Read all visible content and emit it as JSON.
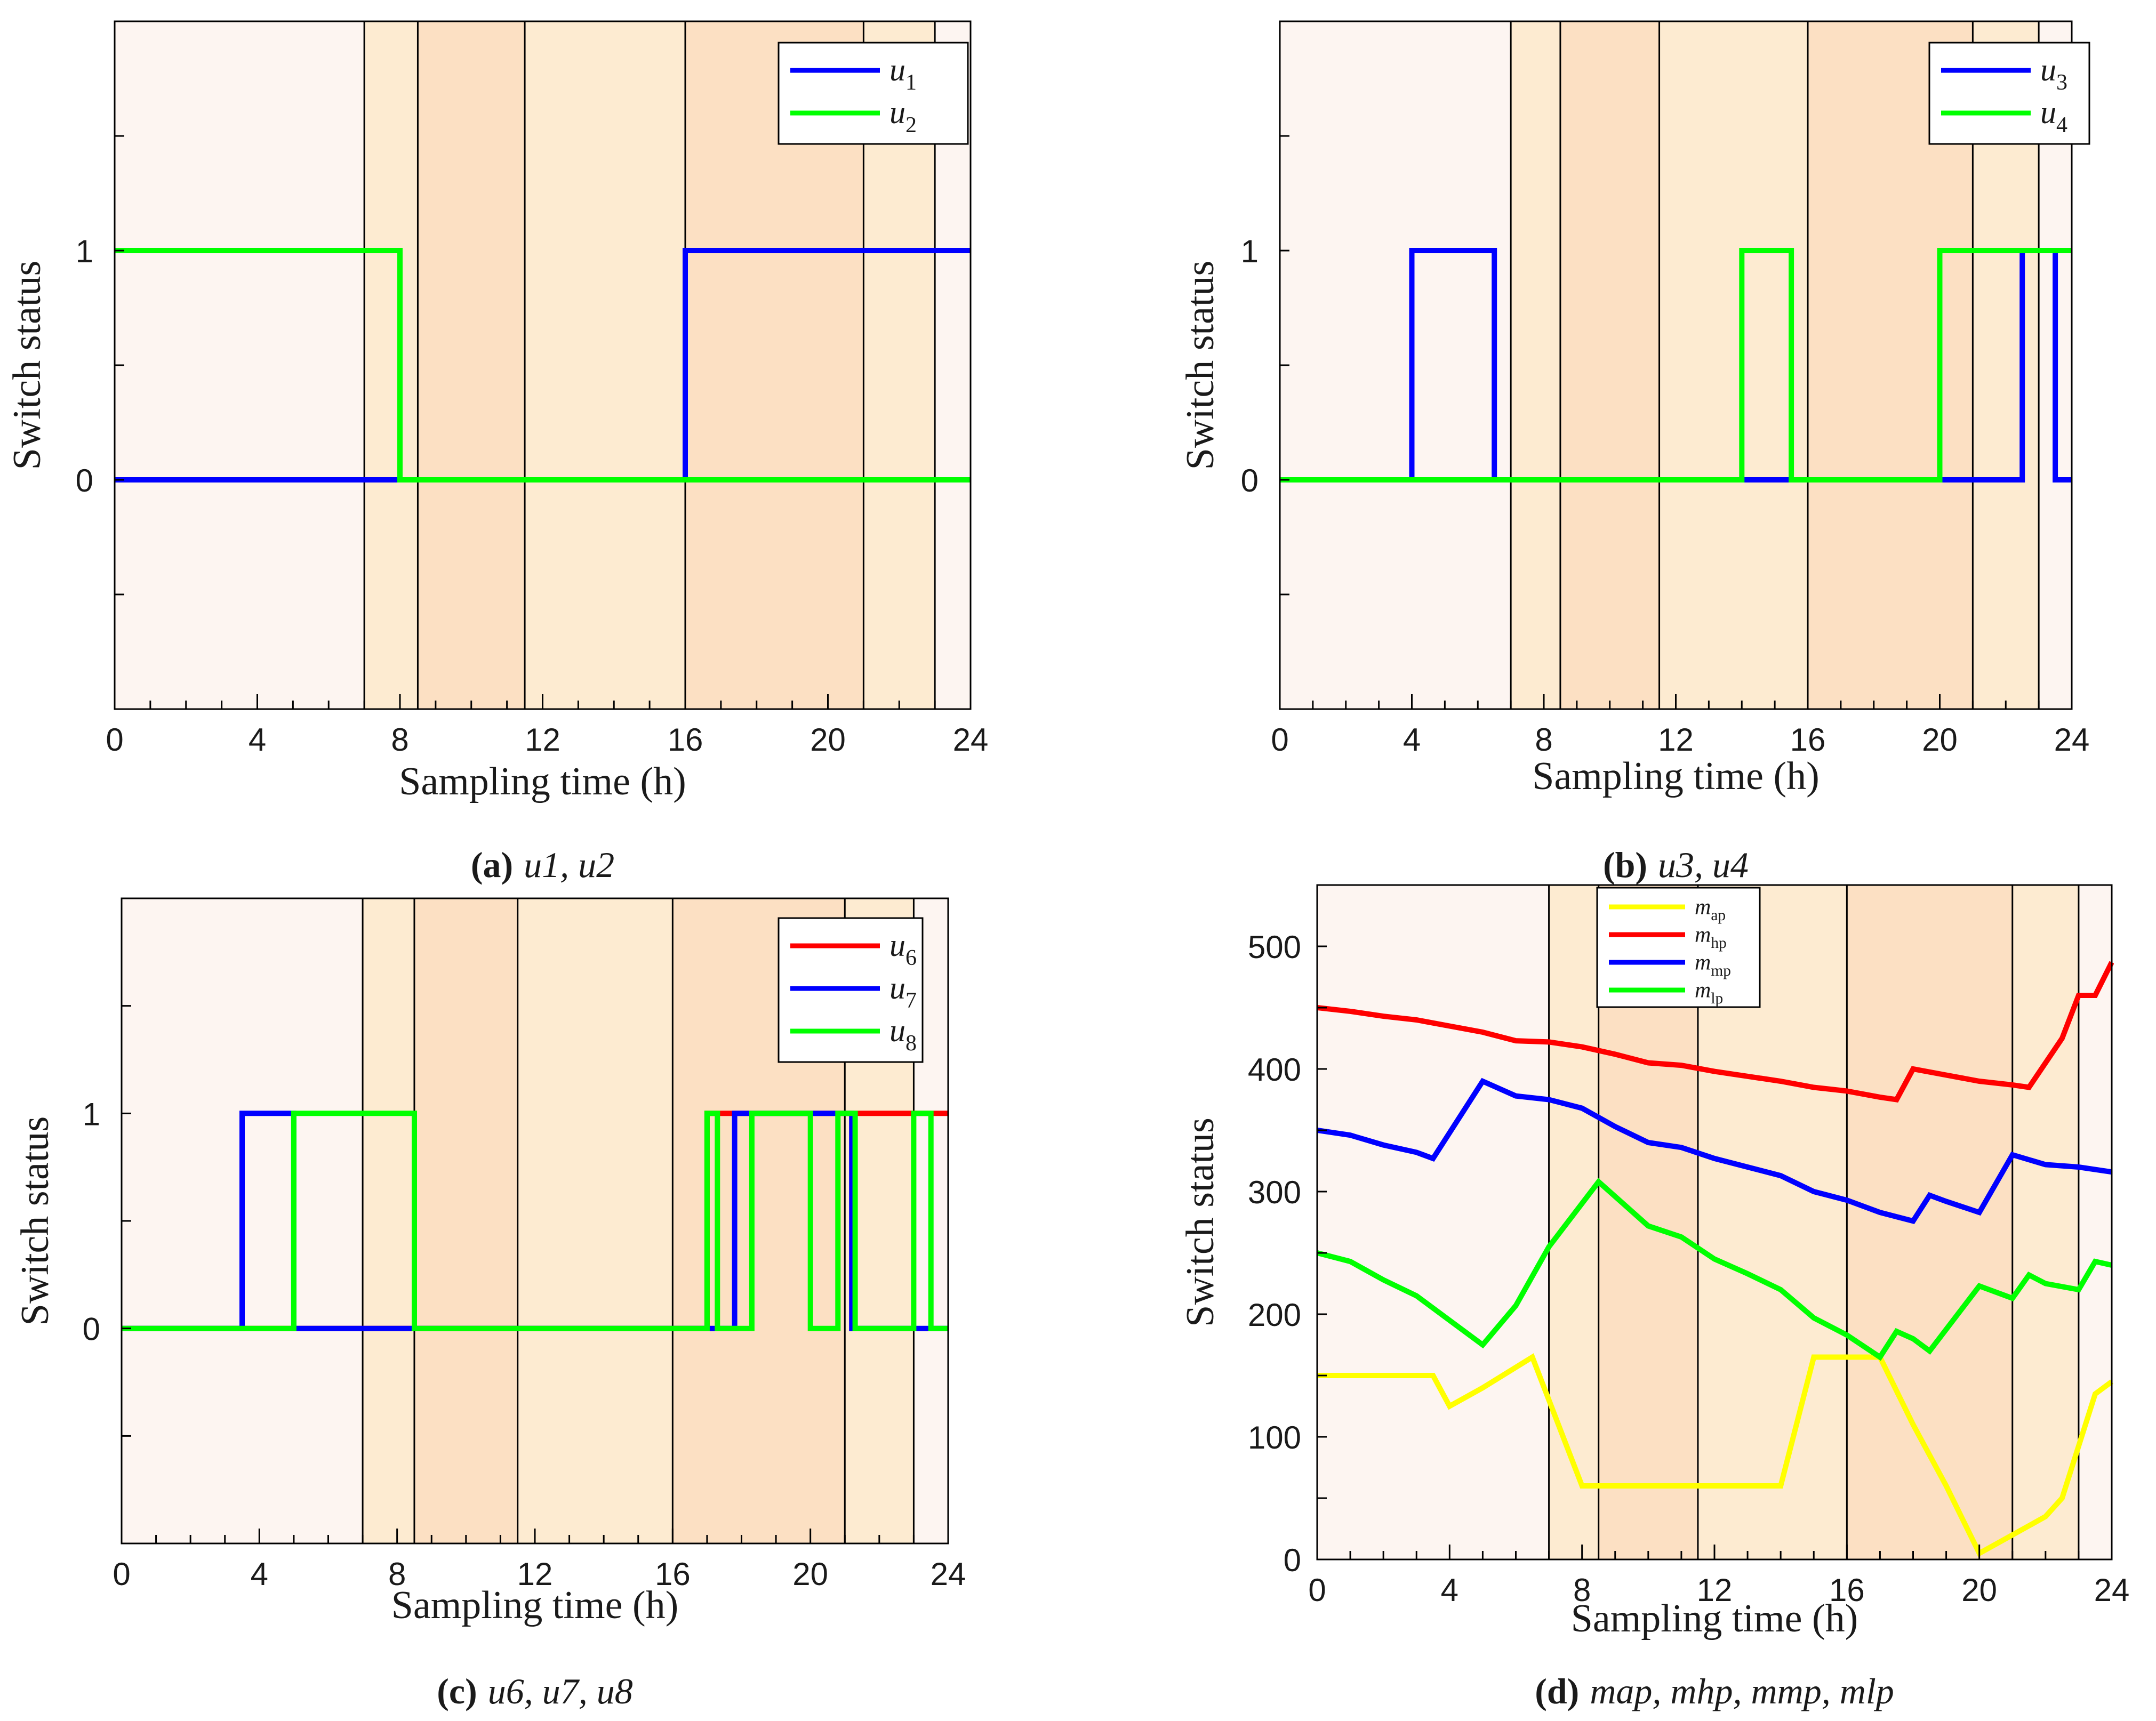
{
  "figure": {
    "background_band_colors": {
      "light": "#fdf5f1",
      "medium": "#fdebd1",
      "dark": "#fce0c3"
    },
    "line_colors": {
      "red": "#ff0000",
      "blue": "#0000ff",
      "green": "#00ff00",
      "yellow": "#ffff00"
    }
  },
  "chart_data": [
    {
      "id": "a",
      "type": "line",
      "step": true,
      "caption": {
        "label": "(a)",
        "text": "u1, u2"
      },
      "xlabel": "Sampling time (h)",
      "ylabel": "Switch status",
      "xlim": [
        0,
        24
      ],
      "ylim": [
        -1,
        2
      ],
      "xticks": [
        "0",
        "4",
        "8",
        "12",
        "16",
        "20",
        "24"
      ],
      "yticks": [
        "0",
        "1"
      ],
      "bands": [
        {
          "start": 0,
          "end": 7,
          "shade": "light"
        },
        {
          "start": 7,
          "end": 8.5,
          "shade": "medium"
        },
        {
          "start": 8.5,
          "end": 11.5,
          "shade": "dark"
        },
        {
          "start": 11.5,
          "end": 16,
          "shade": "medium"
        },
        {
          "start": 16,
          "end": 21,
          "shade": "dark"
        },
        {
          "start": 21,
          "end": 23,
          "shade": "medium"
        },
        {
          "start": 23,
          "end": 24,
          "shade": "light"
        }
      ],
      "legend": [
        {
          "name": "u",
          "sub": "1",
          "color": "blue"
        },
        {
          "name": "u",
          "sub": "2",
          "color": "green"
        }
      ],
      "series": [
        {
          "name": "u1",
          "color": "blue",
          "points": [
            [
              0,
              0
            ],
            [
              16,
              0
            ],
            [
              16,
              1
            ],
            [
              24,
              1
            ]
          ]
        },
        {
          "name": "u2",
          "color": "green",
          "points": [
            [
              0,
              1
            ],
            [
              8,
              1
            ],
            [
              8,
              0
            ],
            [
              24,
              0
            ]
          ]
        }
      ]
    },
    {
      "id": "b",
      "type": "line",
      "step": true,
      "caption": {
        "label": "(b)",
        "text": "u3, u4"
      },
      "xlabel": "Sampling time (h)",
      "ylabel": "Switch status",
      "xlim": [
        0,
        24
      ],
      "ylim": [
        -1,
        2
      ],
      "xticks": [
        "0",
        "4",
        "8",
        "12",
        "16",
        "20",
        "24"
      ],
      "yticks": [
        "0",
        "1"
      ],
      "bands": [
        {
          "start": 0,
          "end": 7,
          "shade": "light"
        },
        {
          "start": 7,
          "end": 8.5,
          "shade": "medium"
        },
        {
          "start": 8.5,
          "end": 11.5,
          "shade": "dark"
        },
        {
          "start": 11.5,
          "end": 16,
          "shade": "medium"
        },
        {
          "start": 16,
          "end": 21,
          "shade": "dark"
        },
        {
          "start": 21,
          "end": 23,
          "shade": "medium"
        },
        {
          "start": 23,
          "end": 24,
          "shade": "light"
        }
      ],
      "legend": [
        {
          "name": "u",
          "sub": "3",
          "color": "blue"
        },
        {
          "name": "u",
          "sub": "4",
          "color": "green"
        }
      ],
      "series": [
        {
          "name": "u3",
          "color": "blue",
          "points": [
            [
              0,
              0
            ],
            [
              4,
              0
            ],
            [
              4,
              1
            ],
            [
              6.5,
              1
            ],
            [
              6.5,
              0
            ],
            [
              22.5,
              0
            ],
            [
              22.5,
              1
            ],
            [
              23.5,
              1
            ],
            [
              23.5,
              0
            ],
            [
              24,
              0
            ]
          ]
        },
        {
          "name": "u4",
          "color": "green",
          "points": [
            [
              0,
              0
            ],
            [
              14,
              0
            ],
            [
              14,
              1
            ],
            [
              15.5,
              1
            ],
            [
              15.5,
              0
            ],
            [
              20,
              0
            ],
            [
              20,
              1
            ],
            [
              24,
              1
            ]
          ]
        }
      ]
    },
    {
      "id": "c",
      "type": "line",
      "step": true,
      "caption": {
        "label": "(c)",
        "text": "u6, u7, u8"
      },
      "xlabel": "Sampling time (h)",
      "ylabel": "Switch status",
      "xlim": [
        0,
        24
      ],
      "ylim": [
        -1,
        2
      ],
      "xticks": [
        "0",
        "4",
        "8",
        "12",
        "16",
        "20",
        "24"
      ],
      "yticks": [
        "0",
        "1"
      ],
      "bands": [
        {
          "start": 0,
          "end": 7,
          "shade": "light"
        },
        {
          "start": 7,
          "end": 8.5,
          "shade": "medium"
        },
        {
          "start": 8.5,
          "end": 11.5,
          "shade": "dark"
        },
        {
          "start": 11.5,
          "end": 16,
          "shade": "medium"
        },
        {
          "start": 16,
          "end": 21,
          "shade": "dark"
        },
        {
          "start": 21,
          "end": 23,
          "shade": "medium"
        },
        {
          "start": 23,
          "end": 24,
          "shade": "light"
        }
      ],
      "legend": [
        {
          "name": "u",
          "sub": "6",
          "color": "red"
        },
        {
          "name": "u",
          "sub": "7",
          "color": "blue"
        },
        {
          "name": "u",
          "sub": "8",
          "color": "green"
        }
      ],
      "series": [
        {
          "name": "u6",
          "color": "red",
          "points": [
            [
              0,
              0
            ],
            [
              17,
              0
            ],
            [
              17,
              1
            ],
            [
              24,
              1
            ]
          ]
        },
        {
          "name": "u7",
          "color": "blue",
          "points": [
            [
              0,
              0
            ],
            [
              3.5,
              0
            ],
            [
              3.5,
              1
            ],
            [
              5,
              1
            ],
            [
              5,
              0
            ],
            [
              17.8,
              0
            ],
            [
              17.8,
              1
            ],
            [
              21.2,
              1
            ],
            [
              21.2,
              0
            ],
            [
              24,
              0
            ]
          ]
        },
        {
          "name": "u8",
          "color": "green",
          "points": [
            [
              0,
              0
            ],
            [
              5,
              0
            ],
            [
              5,
              1
            ],
            [
              8.5,
              1
            ],
            [
              8.5,
              0
            ],
            [
              17,
              0
            ],
            [
              17,
              1
            ],
            [
              17.3,
              1
            ],
            [
              17.3,
              0
            ],
            [
              18.3,
              0
            ],
            [
              18.3,
              1
            ],
            [
              20,
              1
            ],
            [
              20,
              0
            ],
            [
              20.8,
              0
            ],
            [
              20.8,
              1
            ],
            [
              21.3,
              1
            ],
            [
              21.3,
              0
            ],
            [
              23,
              0
            ],
            [
              23,
              1
            ],
            [
              23.5,
              1
            ],
            [
              23.5,
              0
            ],
            [
              24,
              0
            ]
          ]
        }
      ]
    },
    {
      "id": "d",
      "type": "line",
      "step": false,
      "caption": {
        "label": "(d)",
        "text": "map, mhp, mmp, mlp"
      },
      "xlabel": "Sampling time (h)",
      "ylabel": "Switch status",
      "xlim": [
        0,
        24
      ],
      "ylim": [
        0,
        550
      ],
      "xticks": [
        "0",
        "4",
        "8",
        "12",
        "16",
        "20",
        "24"
      ],
      "yticks": [
        "0",
        "100",
        "200",
        "300",
        "400",
        "500"
      ],
      "bands": [
        {
          "start": 0,
          "end": 7,
          "shade": "light"
        },
        {
          "start": 7,
          "end": 8.5,
          "shade": "medium"
        },
        {
          "start": 8.5,
          "end": 11.5,
          "shade": "dark"
        },
        {
          "start": 11.5,
          "end": 16,
          "shade": "medium"
        },
        {
          "start": 16,
          "end": 21,
          "shade": "dark"
        },
        {
          "start": 21,
          "end": 23,
          "shade": "medium"
        },
        {
          "start": 23,
          "end": 24,
          "shade": "light"
        }
      ],
      "legend": [
        {
          "name": "m",
          "sub": "ap",
          "color": "yellow"
        },
        {
          "name": "m",
          "sub": "hp",
          "color": "red"
        },
        {
          "name": "m",
          "sub": "mp",
          "color": "blue"
        },
        {
          "name": "m",
          "sub": "lp",
          "color": "green"
        }
      ],
      "series": [
        {
          "name": "m_ap",
          "color": "yellow",
          "points": [
            [
              0,
              150
            ],
            [
              1,
              150
            ],
            [
              2,
              150
            ],
            [
              3,
              150
            ],
            [
              3.5,
              150
            ],
            [
              4,
              125
            ],
            [
              5,
              140
            ],
            [
              6.5,
              165
            ],
            [
              8,
              60
            ],
            [
              9,
              60
            ],
            [
              10,
              60
            ],
            [
              11,
              60
            ],
            [
              12,
              60
            ],
            [
              13,
              60
            ],
            [
              14,
              60
            ],
            [
              15,
              165
            ],
            [
              16,
              165
            ],
            [
              17,
              165
            ],
            [
              18,
              110
            ],
            [
              19,
              60
            ],
            [
              20,
              5
            ],
            [
              21,
              20
            ],
            [
              22,
              35
            ],
            [
              22.5,
              50
            ],
            [
              23.5,
              135
            ],
            [
              24,
              145
            ]
          ]
        },
        {
          "name": "m_hp",
          "color": "red",
          "points": [
            [
              0,
              450
            ],
            [
              1,
              447
            ],
            [
              2,
              443
            ],
            [
              3,
              440
            ],
            [
              4,
              435
            ],
            [
              5,
              430
            ],
            [
              6,
              423
            ],
            [
              7,
              422
            ],
            [
              8,
              418
            ],
            [
              9,
              412
            ],
            [
              10,
              405
            ],
            [
              11,
              403
            ],
            [
              12,
              398
            ],
            [
              13,
              394
            ],
            [
              14,
              390
            ],
            [
              15,
              385
            ],
            [
              16,
              382
            ],
            [
              17,
              377
            ],
            [
              17.5,
              375
            ],
            [
              18,
              400
            ],
            [
              19,
              395
            ],
            [
              20,
              390
            ],
            [
              21,
              387
            ],
            [
              21.5,
              385
            ],
            [
              22.5,
              425
            ],
            [
              23,
              460
            ],
            [
              23.5,
              460
            ],
            [
              24,
              487
            ]
          ]
        },
        {
          "name": "m_mp",
          "color": "blue",
          "points": [
            [
              0,
              350
            ],
            [
              1,
              346
            ],
            [
              2,
              338
            ],
            [
              3,
              332
            ],
            [
              3.5,
              327
            ],
            [
              5,
              390
            ],
            [
              6,
              378
            ],
            [
              7,
              375
            ],
            [
              8,
              368
            ],
            [
              9,
              353
            ],
            [
              10,
              340
            ],
            [
              11,
              336
            ],
            [
              12,
              327
            ],
            [
              13,
              320
            ],
            [
              14,
              313
            ],
            [
              15,
              300
            ],
            [
              16,
              293
            ],
            [
              17,
              283
            ],
            [
              18,
              276
            ],
            [
              18.5,
              297
            ],
            [
              19,
              292
            ],
            [
              20,
              283
            ],
            [
              21,
              330
            ],
            [
              22,
              322
            ],
            [
              23,
              320
            ],
            [
              24,
              316
            ]
          ]
        },
        {
          "name": "m_lp",
          "color": "green",
          "points": [
            [
              0,
              250
            ],
            [
              1,
              243
            ],
            [
              2,
              228
            ],
            [
              3,
              215
            ],
            [
              4,
              195
            ],
            [
              5,
              175
            ],
            [
              6,
              207
            ],
            [
              7,
              255
            ],
            [
              8.5,
              308
            ],
            [
              10,
              272
            ],
            [
              11,
              263
            ],
            [
              12,
              245
            ],
            [
              13,
              233
            ],
            [
              14,
              220
            ],
            [
              15,
              197
            ],
            [
              16,
              183
            ],
            [
              17,
              165
            ],
            [
              17.5,
              186
            ],
            [
              18,
              180
            ],
            [
              18.5,
              170
            ],
            [
              20,
              223
            ],
            [
              21,
              213
            ],
            [
              21.5,
              232
            ],
            [
              22,
              225
            ],
            [
              23,
              220
            ],
            [
              23.5,
              243
            ],
            [
              24,
              240
            ]
          ]
        }
      ]
    }
  ]
}
